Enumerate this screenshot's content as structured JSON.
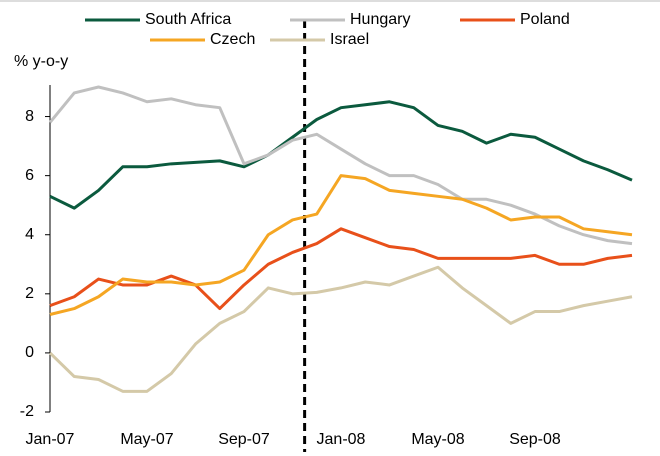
{
  "chart_data": {
    "type": "line",
    "ylabel": "% y-o-y",
    "categories": [
      "Jan-07",
      null,
      null,
      null,
      "May-07",
      null,
      null,
      null,
      "Sep-07",
      null,
      null,
      null,
      "Jan-08",
      null,
      null,
      null,
      "May-08",
      null,
      null,
      null,
      "Sep-08",
      null,
      null,
      null,
      null
    ],
    "series": [
      {
        "name": "South Africa",
        "color": "#0b5a3e",
        "values": [
          5.3,
          4.9,
          5.5,
          6.3,
          6.3,
          6.4,
          6.45,
          6.5,
          6.3,
          6.7,
          7.3,
          7.9,
          8.3,
          8.4,
          8.5,
          8.3,
          7.7,
          7.5,
          7.1,
          7.4,
          7.3,
          6.9,
          6.5,
          6.2,
          5.85
        ]
      },
      {
        "name": "Hungary",
        "color": "#c0c0c0",
        "values": [
          7.8,
          8.8,
          9.0,
          8.8,
          8.5,
          8.6,
          8.4,
          8.3,
          6.4,
          6.7,
          7.2,
          7.4,
          6.9,
          6.4,
          6.0,
          6.0,
          5.7,
          5.2,
          5.2,
          5.0,
          4.7,
          4.3,
          4.0,
          3.8,
          3.7
        ]
      },
      {
        "name": "Poland",
        "color": "#e8501a",
        "values": [
          1.6,
          1.9,
          2.5,
          2.3,
          2.3,
          2.6,
          2.3,
          1.5,
          2.3,
          3.0,
          3.4,
          3.7,
          4.2,
          3.9,
          3.6,
          3.5,
          3.2,
          3.2,
          3.2,
          3.2,
          3.3,
          3.0,
          3.0,
          3.2,
          3.3
        ]
      },
      {
        "name": "Czech",
        "color": "#f5a623",
        "values": [
          1.3,
          1.5,
          1.9,
          2.5,
          2.4,
          2.4,
          2.3,
          2.4,
          2.8,
          4.0,
          4.5,
          4.7,
          6.0,
          5.9,
          5.5,
          5.4,
          5.3,
          5.2,
          4.9,
          4.5,
          4.6,
          4.6,
          4.2,
          4.1,
          4.0
        ]
      },
      {
        "name": "Israel",
        "color": "#d4c9a8",
        "values": [
          0.0,
          -0.8,
          -0.9,
          -1.3,
          -1.3,
          -0.7,
          0.3,
          1.0,
          1.4,
          2.2,
          2.0,
          2.05,
          2.2,
          2.4,
          2.3,
          2.6,
          2.9,
          2.2,
          1.6,
          1.0,
          1.4,
          1.4,
          1.6,
          1.75,
          1.9
        ]
      }
    ],
    "ylim": [
      -2,
      9
    ],
    "yticks": [
      -2,
      0,
      2,
      4,
      6,
      8
    ],
    "legend": "top"
  }
}
